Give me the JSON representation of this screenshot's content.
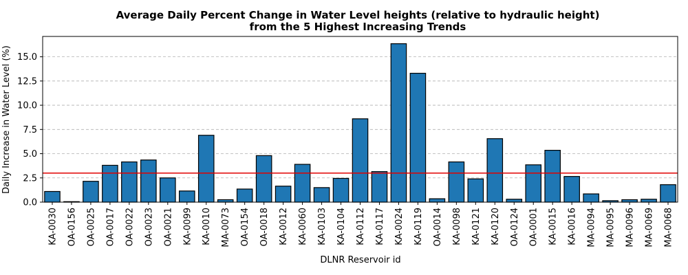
{
  "chart_data": {
    "type": "bar",
    "title_line1": "Average Daily Percent Change in Water Level heights (relative to hydraulic height)",
    "title_line2": "from the 5 Highest Increasing Trends",
    "xlabel": "DLNR Reservoir id",
    "ylabel": "Daily Increase in Water Level (%)",
    "ylim": [
      0,
      17.1
    ],
    "yticks": [
      "0.0",
      "2.5",
      "5.0",
      "7.5",
      "10.0",
      "12.5",
      "15.0"
    ],
    "grid": "y-dashed",
    "reference_line": {
      "y": 3.0,
      "color": "#e00000"
    },
    "bar_color": "#1f77b4",
    "categories": [
      "KA-0030",
      "OA-0156",
      "OA-0025",
      "OA-0017",
      "OA-0022",
      "OA-0023",
      "OA-0021",
      "KA-0099",
      "KA-0010",
      "MA-0073",
      "OA-0154",
      "OA-0018",
      "KA-0012",
      "KA-0060",
      "KA-0103",
      "KA-0104",
      "KA-0112",
      "KA-0117",
      "KA-0024",
      "KA-0119",
      "OA-0014",
      "KA-0098",
      "KA-0121",
      "KA-0120",
      "OA-0124",
      "OA-0001",
      "KA-0015",
      "KA-0016",
      "MA-0094",
      "MA-0095",
      "MA-0096",
      "MA-0069",
      "MA-0068"
    ],
    "values": [
      1.1,
      0.05,
      2.15,
      3.8,
      4.15,
      4.35,
      2.5,
      1.15,
      6.9,
      0.25,
      1.35,
      4.8,
      1.65,
      3.9,
      1.5,
      2.45,
      8.6,
      3.15,
      16.35,
      13.3,
      0.35,
      4.15,
      2.4,
      6.55,
      0.3,
      3.85,
      5.35,
      2.65,
      0.85,
      0.15,
      0.25,
      0.3,
      1.8
    ]
  }
}
